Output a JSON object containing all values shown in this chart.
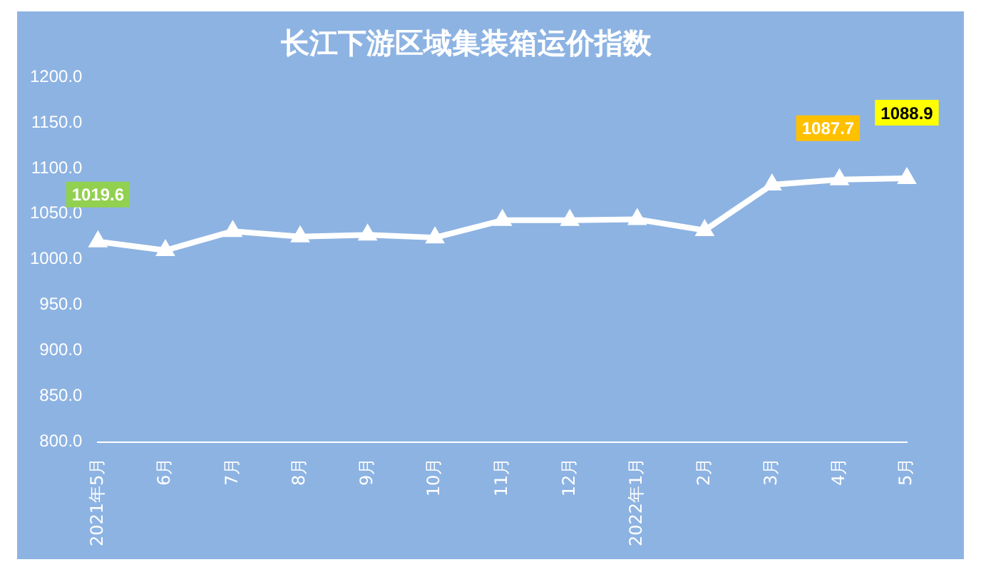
{
  "chart_data": {
    "type": "line",
    "title": "长江下游区域集装箱运价指数",
    "categories": [
      "2021年5月",
      "6月",
      "7月",
      "8月",
      "9月",
      "10月",
      "11月",
      "12月",
      "2022年1月",
      "2月",
      "3月",
      "4月",
      "5月"
    ],
    "series": [
      {
        "color": "#ffffff",
        "values": [
          1019.6,
          1010,
          1031,
          1025,
          1027,
          1024,
          1043,
          1043,
          1044,
          1032,
          1082,
          1087.7,
          1088.9
        ],
        "value_labels": [
          "1019.6",
          null,
          null,
          null,
          null,
          null,
          null,
          null,
          null,
          null,
          null,
          "1087.7",
          "1088.9"
        ]
      }
    ],
    "ylim": [
      800,
      1200
    ],
    "yticks": [
      {
        "value": 800,
        "label": "800.0"
      },
      {
        "value": 850,
        "label": "850.0"
      },
      {
        "value": 900,
        "label": "900.0"
      },
      {
        "value": 950,
        "label": "950.0"
      },
      {
        "value": 1000,
        "label": "1000.0"
      },
      {
        "value": 1050,
        "label": "1050.0"
      },
      {
        "value": 1100,
        "label": "1100.0"
      },
      {
        "value": 1150,
        "label": "1150.0"
      },
      {
        "value": 1200,
        "label": "1200.0"
      }
    ],
    "grid": false,
    "legend": false,
    "marker": "triangle",
    "line_style": "solid"
  }
}
